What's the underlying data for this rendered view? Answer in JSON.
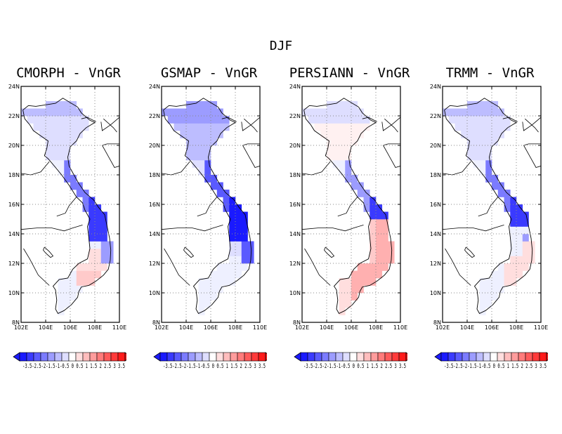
{
  "title": "DJF",
  "panels": [
    {
      "title": "CMORPH - VnGR",
      "pattern": "cmorph"
    },
    {
      "title": "GSMAP - VnGR",
      "pattern": "gsmap"
    },
    {
      "title": "PERSIANN - VnGR",
      "pattern": "persiann"
    },
    {
      "title": "TRMM - VnGR",
      "pattern": "trmm"
    }
  ],
  "axes": {
    "lat_labels": [
      "24N",
      "22N",
      "20N",
      "18N",
      "16N",
      "14N",
      "12N",
      "10N",
      "8N"
    ],
    "lon_labels": [
      "102E",
      "104E",
      "106E",
      "108E",
      "110E"
    ],
    "lat_range": [
      8,
      24
    ],
    "lon_range": [
      102,
      110
    ],
    "grid": "dotted"
  },
  "colorbar": {
    "levels_text": "-3.5-2.5-2-1.5-1-0.5 0 0.5 1 1.5 2 2.5 3 3.5",
    "colors": [
      "#1a1aff",
      "#3a3aff",
      "#5a5aff",
      "#7b7bff",
      "#9c9cff",
      "#bdbdff",
      "#dedeff",
      "#ffffff",
      "#ffdede",
      "#ffbdbd",
      "#ff9c9c",
      "#ff7b7b",
      "#ff5a5a",
      "#ff3a3a",
      "#ff1a1a"
    ]
  }
}
